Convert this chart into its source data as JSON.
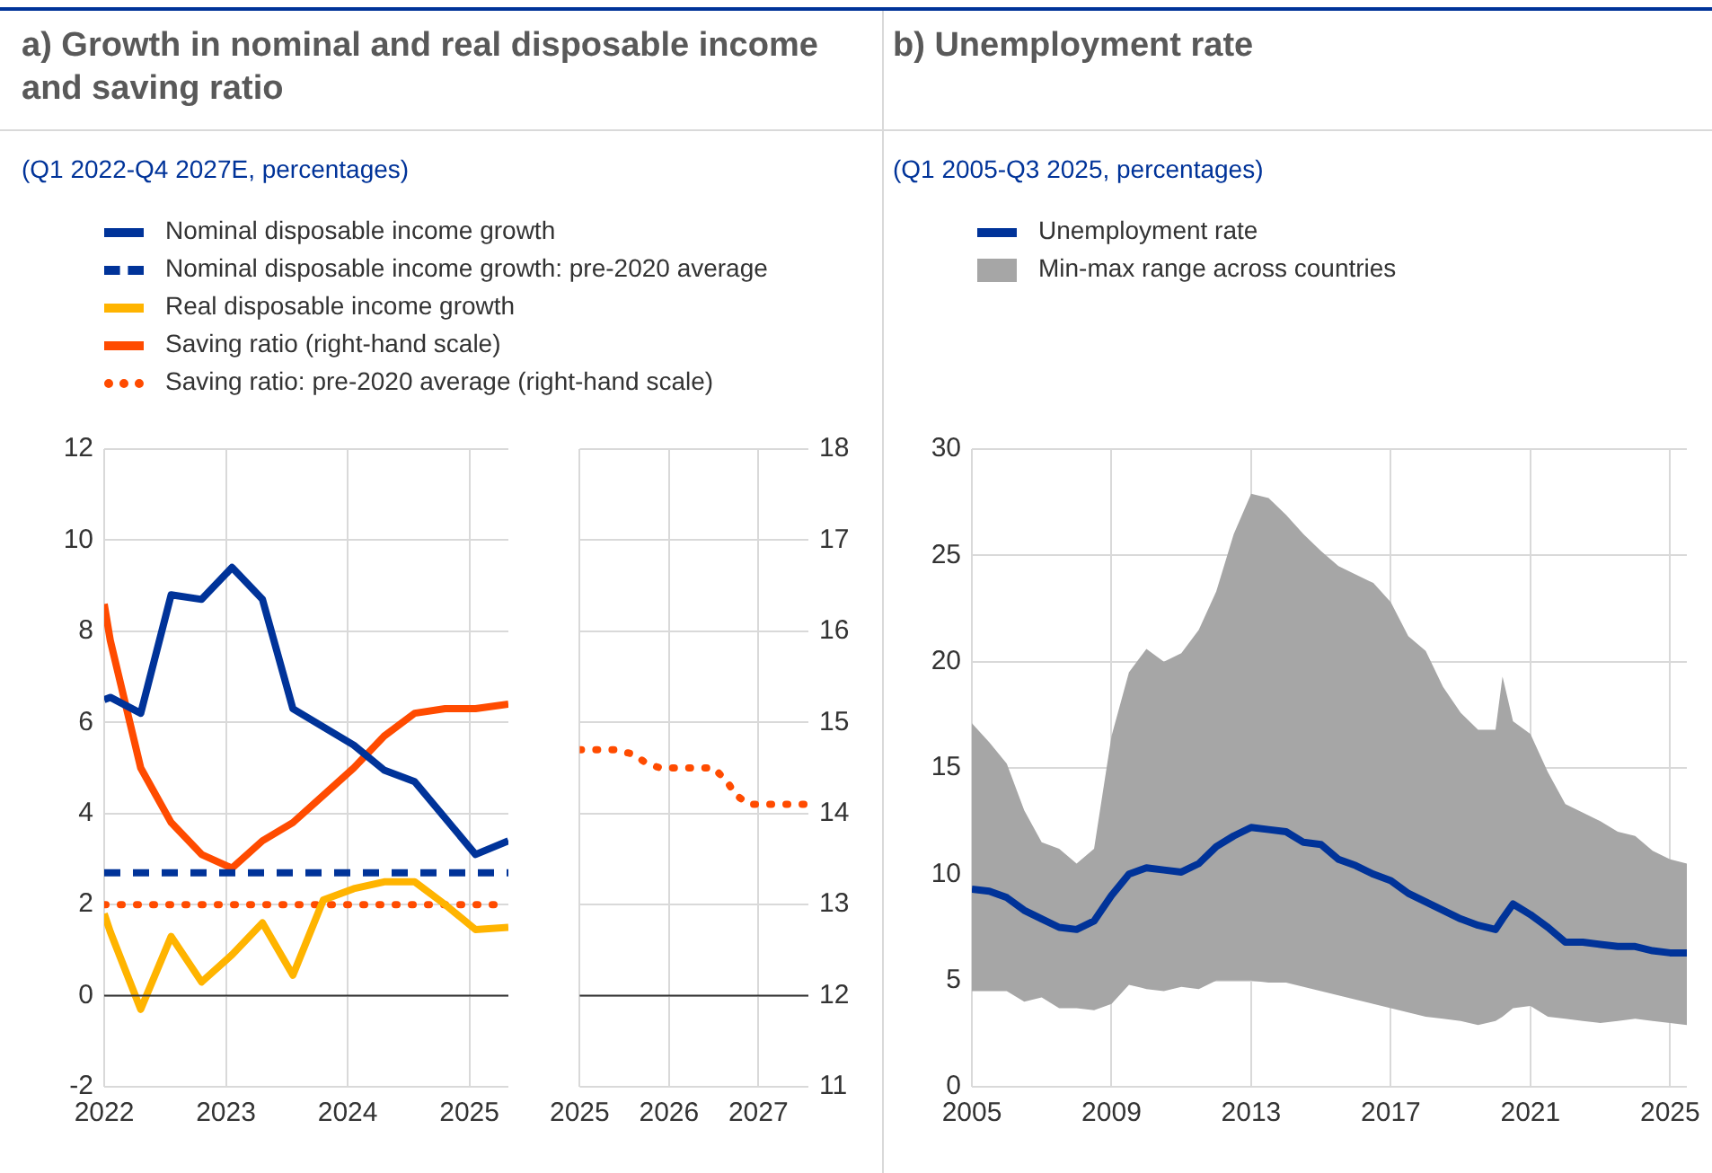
{
  "chart_data": [
    {
      "type": "line",
      "title": "a) Growth in nominal and real disposable income and saving ratio",
      "subtitle": "(Q1 2022-Q4 2027E, percentages)",
      "x": [
        2022.0,
        2022.05,
        2022.3,
        2022.55,
        2022.8,
        2023.05,
        2023.3,
        2023.55,
        2023.8,
        2024.05,
        2024.3,
        2024.55,
        2024.8,
        2025.05,
        2025.32
      ],
      "series": [
        {
          "name": "Nominal disposable income growth",
          "color": "#003399",
          "values": [
            6.5,
            6.55,
            6.2,
            8.8,
            8.7,
            9.4,
            8.7,
            6.3,
            5.9,
            5.5,
            4.95,
            4.7,
            3.9,
            3.1,
            3.4
          ]
        },
        {
          "name": "Nominal disposable income growth: pre-2020 average",
          "color": "#003399",
          "line_style": "dashed",
          "values": [
            2.7,
            2.7,
            2.7,
            2.7,
            2.7,
            2.7,
            2.7,
            2.7,
            2.7,
            2.7,
            2.7,
            2.7,
            2.7,
            2.7,
            2.7
          ]
        },
        {
          "name": "Real disposable income growth",
          "color": "#ffb400",
          "values": [
            1.8,
            1.4,
            -0.3,
            1.3,
            0.3,
            0.9,
            1.6,
            0.45,
            2.1,
            2.35,
            2.5,
            2.5,
            2.0,
            1.45,
            1.5
          ]
        },
        {
          "name": "Saving ratio (right-hand scale)",
          "color": "#ff4b00",
          "axis": "y2",
          "values": [
            16.3,
            15.9,
            14.5,
            13.9,
            13.55,
            13.4,
            13.7,
            13.9,
            14.2,
            14.5,
            14.85,
            15.1,
            15.15,
            15.15,
            15.2
          ]
        },
        {
          "name": "Saving ratio: pre-2020 average (right-hand scale)",
          "color": "#ff4b00",
          "axis": "y2",
          "line_style": "dotted",
          "values": [
            13,
            13,
            13,
            13,
            13,
            13,
            13,
            13,
            13,
            13,
            13,
            13,
            13,
            13,
            13
          ]
        }
      ],
      "xlim": [
        2022,
        2025.32
      ],
      "xticks": [
        2022,
        2023,
        2024,
        2025
      ],
      "ylim": [
        -2,
        12
      ],
      "yticks": [
        -2,
        0,
        2,
        4,
        6,
        8,
        10,
        12
      ],
      "y2lim": [
        11,
        18
      ],
      "ref_lines": [
        {
          "axis": "y",
          "value": 0
        }
      ],
      "grid": true,
      "legend": "top"
    },
    {
      "type": "line",
      "x": [
        2025.0,
        2025.4,
        2025.6,
        2025.75,
        2025.9,
        2026.5,
        2026.65,
        2026.75,
        2026.9,
        2027.56
      ],
      "series": [
        {
          "color": "#ff4b00",
          "line_style": "dotted",
          "axis": "y2",
          "values": [
            14.7,
            14.7,
            14.65,
            14.55,
            14.5,
            14.5,
            14.35,
            14.2,
            14.1,
            14.1
          ]
        }
      ],
      "xlim": [
        2025,
        2027.56
      ],
      "xticks": [
        2025,
        2026,
        2027
      ],
      "y2lim": [
        11,
        18
      ],
      "y2ticks": [
        11,
        12,
        13,
        14,
        15,
        16,
        17,
        18
      ],
      "ref_lines": [
        {
          "axis": "y2",
          "value": 12
        }
      ],
      "grid": true
    },
    {
      "type": "line",
      "title": "b) Unemployment rate",
      "subtitle": "(Q1 2005-Q3 2025, percentages)",
      "x": [
        2005.0,
        2005.5,
        2006.0,
        2006.5,
        2007.0,
        2007.5,
        2008.0,
        2008.5,
        2009.0,
        2009.5,
        2010.0,
        2010.5,
        2011.0,
        2011.5,
        2012.0,
        2012.5,
        2013.0,
        2013.5,
        2014.0,
        2014.5,
        2015.0,
        2015.5,
        2016.0,
        2016.5,
        2017.0,
        2017.5,
        2018.0,
        2018.5,
        2019.0,
        2019.5,
        2020.0,
        2020.2,
        2020.5,
        2021.0,
        2021.5,
        2022.0,
        2022.5,
        2023.0,
        2023.5,
        2024.0,
        2024.5,
        2025.0,
        2025.48
      ],
      "series": [
        {
          "name": "Unemployment rate",
          "color": "#003399",
          "values": [
            9.3,
            9.2,
            8.9,
            8.3,
            7.9,
            7.5,
            7.4,
            7.8,
            9.0,
            10.0,
            10.3,
            10.2,
            10.1,
            10.5,
            11.3,
            11.8,
            12.2,
            12.1,
            12.0,
            11.5,
            11.4,
            10.7,
            10.4,
            10.0,
            9.7,
            9.1,
            8.7,
            8.3,
            7.9,
            7.6,
            7.4,
            7.9,
            8.6,
            8.1,
            7.5,
            6.8,
            6.8,
            6.7,
            6.6,
            6.6,
            6.4,
            6.3,
            6.3
          ],
          "lower": [
            4.5,
            4.5,
            4.5,
            4.0,
            4.2,
            3.7,
            3.7,
            3.6,
            3.9,
            4.8,
            4.6,
            4.5,
            4.7,
            4.6,
            5.0,
            5.0,
            5.0,
            4.9,
            4.9,
            4.7,
            4.5,
            4.3,
            4.1,
            3.9,
            3.7,
            3.5,
            3.3,
            3.2,
            3.1,
            2.9,
            3.1,
            3.3,
            3.7,
            3.8,
            3.3,
            3.2,
            3.1,
            3.0,
            3.1,
            3.2,
            3.1,
            3.0,
            2.9
          ],
          "upper": [
            17.1,
            16.2,
            15.2,
            13.0,
            11.5,
            11.2,
            10.5,
            11.2,
            16.5,
            19.5,
            20.6,
            20.0,
            20.4,
            21.5,
            23.3,
            26.0,
            27.9,
            27.7,
            26.9,
            26.0,
            25.2,
            24.5,
            24.1,
            23.7,
            22.8,
            21.2,
            20.5,
            18.8,
            17.6,
            16.8,
            16.8,
            19.3,
            17.2,
            16.6,
            14.8,
            13.3,
            12.9,
            12.5,
            12.0,
            11.8,
            11.1,
            10.7,
            10.5
          ]
        }
      ],
      "annotations": [
        "Min-max range across countries"
      ],
      "xlim": [
        2005,
        2025.48
      ],
      "xticks": [
        2005,
        2009,
        2013,
        2017,
        2021,
        2025
      ],
      "ylim": [
        0,
        30
      ],
      "yticks": [
        0,
        5,
        10,
        15,
        20,
        25,
        30
      ],
      "grid": true,
      "legend": "top"
    }
  ]
}
